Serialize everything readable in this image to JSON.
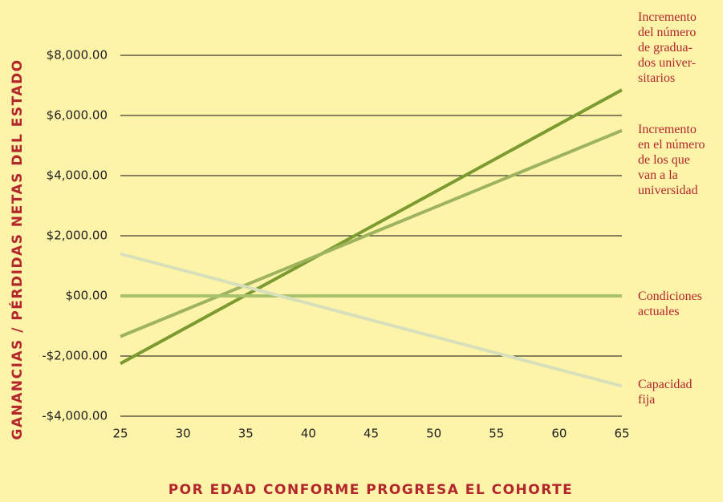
{
  "chart_data": {
    "type": "line",
    "y_label": "GANANCIAS / PÉRDIDAS NETAS DEL ESTADO",
    "x_label": "POR EDAD CONFORME PROGRESA EL COHORTE",
    "x": [
      25,
      65
    ],
    "series": [
      {
        "name": "Incremento\ndel número\nde gradua-\ndos univer-\nsitarios",
        "color": "#7b9a2f",
        "values": [
          -2250,
          6850
        ]
      },
      {
        "name": "Incremento\nen el número\nde los que\nvan a la\nuniversidad",
        "color": "#9db45c",
        "values": [
          -1350,
          5500
        ]
      },
      {
        "name": "Condiciones\nactuales",
        "color": "#a8c16c",
        "values": [
          0,
          0
        ]
      },
      {
        "name": "Capacidad\nfija",
        "color": "#d8e0bb",
        "values": [
          1400,
          -3000
        ]
      }
    ],
    "xlim": [
      25,
      65
    ],
    "xticks": [
      25,
      30,
      35,
      40,
      45,
      50,
      55,
      60,
      65
    ],
    "ylim": [
      -4000,
      8000
    ],
    "yticks": [
      {
        "value": -4000,
        "label": "-$4,000.00"
      },
      {
        "value": -2000,
        "label": "-$2,000.00"
      },
      {
        "value": 0,
        "label": "$00.00"
      },
      {
        "value": 2000,
        "label": "$2,000.00"
      },
      {
        "value": 4000,
        "label": "$4,000.00"
      },
      {
        "value": 6000,
        "label": "$6,000.00"
      },
      {
        "value": 8000,
        "label": "$8,000.00"
      }
    ],
    "grid": true
  }
}
